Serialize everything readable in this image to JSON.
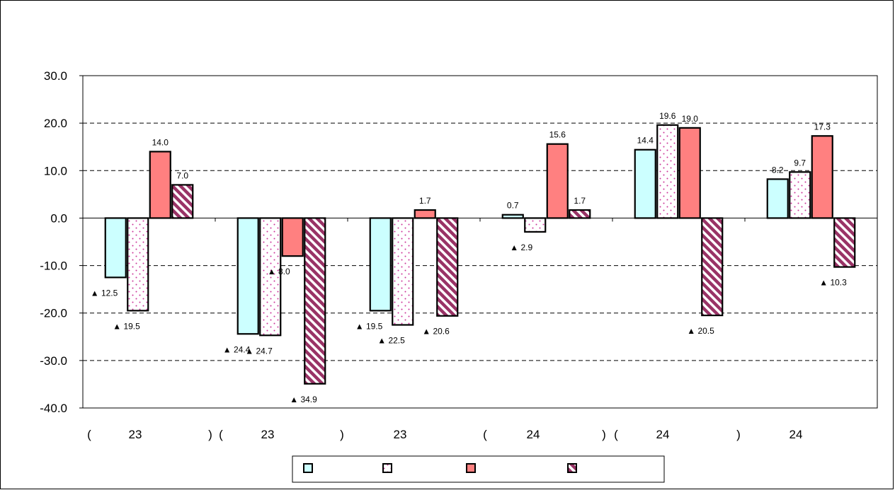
{
  "chart_data": {
    "type": "bar",
    "y_ticks": [
      "30.0",
      "20.0",
      "10.0",
      "0.0",
      "-10.0",
      "-20.0",
      "-30.0",
      "-40.0"
    ],
    "ylim": [
      -40,
      30
    ],
    "grid": true,
    "legend_position": "bottom",
    "x_axis_label_row": [
      "(",
      "23",
      ")",
      "(",
      "23",
      ")",
      "23",
      "(",
      "24",
      ")",
      "(",
      "24",
      ")",
      "24"
    ],
    "negative_marker": "▲",
    "series": [
      {
        "values": [
          -12.5,
          -24.4,
          -19.5,
          0.7,
          14.4,
          8.2
        ],
        "labels": [
          "▲ 12.5",
          "▲ 24.4",
          "▲ 19.5",
          "0.7",
          "14.4",
          "8.2"
        ],
        "color": "#ccffff",
        "pattern": "solid"
      },
      {
        "values": [
          -19.5,
          -24.7,
          -22.5,
          -2.9,
          19.6,
          9.7
        ],
        "labels": [
          "▲ 19.5",
          "▲ 24.7",
          "▲ 22.5",
          "▲ 2.9",
          "19.6",
          "9.7"
        ],
        "color": "#ffffff",
        "pattern": "dots"
      },
      {
        "values": [
          14.0,
          -8.0,
          1.7,
          15.6,
          19.0,
          17.3
        ],
        "labels": [
          "14.0",
          "▲ 8.0",
          "1.7",
          "15.6",
          "19.0",
          "17.3"
        ],
        "color": "#ff8080",
        "pattern": "solid"
      },
      {
        "values": [
          7.0,
          -34.9,
          -20.6,
          1.7,
          -20.5,
          -10.3
        ],
        "labels": [
          "7.0",
          "▲ 34.9",
          "▲ 20.6",
          "1.7",
          "▲ 20.5",
          "▲ 10.3"
        ],
        "color": "#993366",
        "pattern": "stripes"
      }
    ]
  }
}
